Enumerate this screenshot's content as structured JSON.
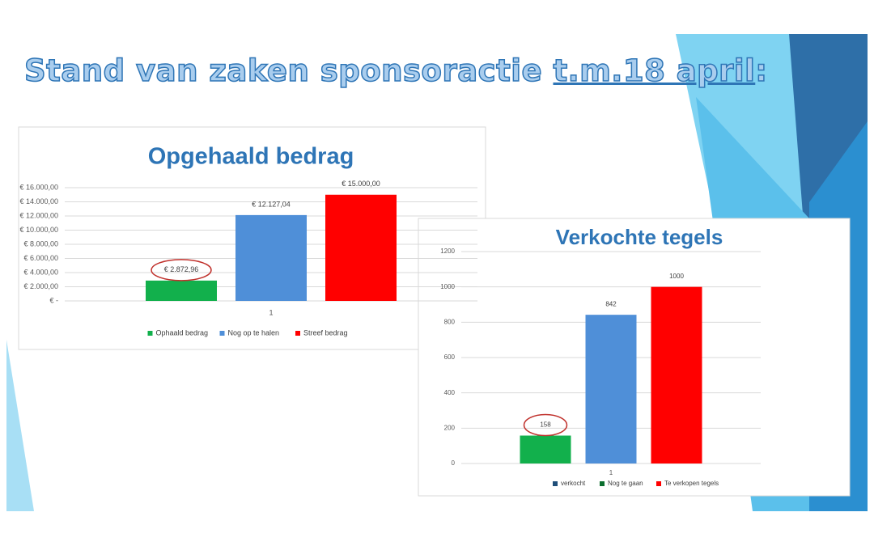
{
  "header": {
    "title_prefix": "Stand van zaken sponsoractie ",
    "title_underlined": "t.m.18 april",
    "title_suffix": ":"
  },
  "chart_data": [
    {
      "type": "bar",
      "title": "Opgehaald bedrag",
      "categories": [
        "1"
      ],
      "series": [
        {
          "name": "Ophaald bedrag",
          "color": "#12b04c",
          "values": [
            2872.96
          ],
          "value_labels": [
            "€ 2.872,96"
          ]
        },
        {
          "name": "Nog op te halen",
          "color": "#4f8fd8",
          "values": [
            12127.04
          ],
          "value_labels": [
            "€ 12.127,04"
          ]
        },
        {
          "name": "Streef bedrag",
          "color": "#ff0000",
          "values": [
            15000
          ],
          "value_labels": [
            "€ 15.000,00"
          ]
        }
      ],
      "ylim": [
        0,
        16000
      ],
      "yticks": [
        {
          "value": 0,
          "label": "€ -"
        },
        {
          "value": 2000,
          "label": "€ 2.000,00"
        },
        {
          "value": 4000,
          "label": "€ 4.000,00"
        },
        {
          "value": 6000,
          "label": "€ 6.000,00"
        },
        {
          "value": 8000,
          "label": "€ 8.000,00"
        },
        {
          "value": 10000,
          "label": "€ 10.000,00"
        },
        {
          "value": 12000,
          "label": "€ 12.000,00"
        },
        {
          "value": 14000,
          "label": "€ 14.000,00"
        },
        {
          "value": 16000,
          "label": "€ 16.000,00"
        }
      ],
      "grid": true,
      "legend": "bottom"
    },
    {
      "type": "bar",
      "title": "Verkochte tegels",
      "categories": [
        "1"
      ],
      "series": [
        {
          "name": "verkocht",
          "color": "#12b04c",
          "legend_color": "#1f4e79",
          "values": [
            158
          ]
        },
        {
          "name": "Nog te gaan",
          "color": "#4f8fd8",
          "legend_color": "#0b6e2e",
          "values": [
            842
          ]
        },
        {
          "name": "Te verkopen tegels",
          "color": "#ff0000",
          "legend_color": "#ff0000",
          "values": [
            1000
          ]
        }
      ],
      "ylim": [
        0,
        1200
      ],
      "yticks": [
        0,
        200,
        400,
        600,
        800,
        1000,
        1200
      ],
      "grid": true,
      "legend": "bottom"
    }
  ]
}
